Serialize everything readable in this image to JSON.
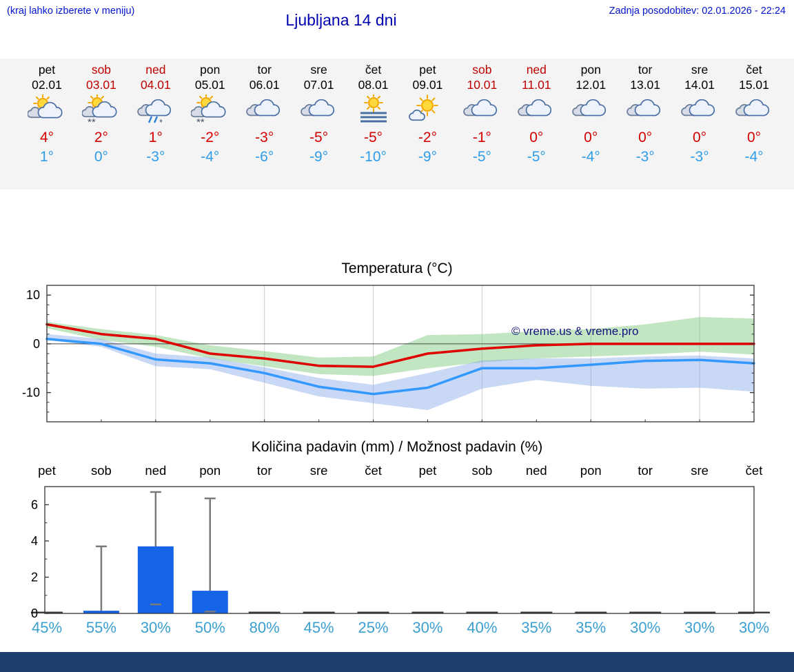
{
  "header": {
    "hint": "(kraj lahko izberete v meniju)",
    "title": "Ljubljana 14 dni",
    "last_update": "Zadnja posodobitev: 02.01.2026 - 22:24"
  },
  "forecast": {
    "days": [
      {
        "name": "pet",
        "date": "02.01",
        "weekend": false,
        "icon": "partly-sunny",
        "high": "4°",
        "low": "1°"
      },
      {
        "name": "sob",
        "date": "03.01",
        "weekend": true,
        "icon": "snow-sun",
        "high": "2°",
        "low": "0°"
      },
      {
        "name": "ned",
        "date": "04.01",
        "weekend": true,
        "icon": "sleet",
        "high": "1°",
        "low": "-3°"
      },
      {
        "name": "pon",
        "date": "05.01",
        "weekend": false,
        "icon": "snow-sun",
        "high": "-2°",
        "low": "-4°"
      },
      {
        "name": "tor",
        "date": "06.01",
        "weekend": false,
        "icon": "cloudy",
        "high": "-3°",
        "low": "-6°"
      },
      {
        "name": "sre",
        "date": "07.01",
        "weekend": false,
        "icon": "cloudy",
        "high": "-5°",
        "low": "-9°"
      },
      {
        "name": "čet",
        "date": "08.01",
        "weekend": false,
        "icon": "fog-sun",
        "high": "-5°",
        "low": "-10°"
      },
      {
        "name": "pet",
        "date": "09.01",
        "weekend": false,
        "icon": "sunny",
        "high": "-2°",
        "low": "-9°"
      },
      {
        "name": "sob",
        "date": "10.01",
        "weekend": true,
        "icon": "cloudy",
        "high": "-1°",
        "low": "-5°"
      },
      {
        "name": "ned",
        "date": "11.01",
        "weekend": true,
        "icon": "cloudy",
        "high": "0°",
        "low": "-5°"
      },
      {
        "name": "pon",
        "date": "12.01",
        "weekend": false,
        "icon": "cloudy",
        "high": "0°",
        "low": "-4°"
      },
      {
        "name": "tor",
        "date": "13.01",
        "weekend": false,
        "icon": "cloudy",
        "high": "0°",
        "low": "-3°"
      },
      {
        "name": "sre",
        "date": "14.01",
        "weekend": false,
        "icon": "cloudy",
        "high": "0°",
        "low": "-3°"
      },
      {
        "name": "čet",
        "date": "15.01",
        "weekend": false,
        "icon": "cloudy",
        "high": "0°",
        "low": "-4°"
      }
    ]
  },
  "chart_data": [
    {
      "type": "line",
      "title": "Temperatura (°C)",
      "x_days": [
        "pet",
        "sob",
        "ned",
        "pon",
        "tor",
        "sre",
        "čet",
        "pet",
        "sob",
        "ned",
        "pon",
        "tor",
        "sre",
        "čet"
      ],
      "ylim": [
        -16,
        12
      ],
      "yticks": [
        10,
        0,
        -10
      ],
      "grid": "vertical-every-2-days",
      "legend": "none",
      "watermark": "© vreme.us & vreme.pro",
      "series": [
        {
          "name": "max-temp",
          "color": "#df0000",
          "values": [
            4,
            2,
            1,
            -2,
            -3,
            -4.5,
            -4.7,
            -2,
            -1,
            -0.3,
            0,
            0,
            0,
            0
          ]
        },
        {
          "name": "min-temp",
          "color": "#3399ff",
          "values": [
            1,
            0,
            -3.2,
            -4,
            -6,
            -8.8,
            -10.3,
            -9,
            -5,
            -5,
            -4.3,
            -3.5,
            -3.3,
            -4
          ]
        }
      ],
      "bands": [
        {
          "name": "max-range",
          "color": "#77c877",
          "hi": [
            4.5,
            3,
            1.8,
            -0.3,
            -1.5,
            -2.8,
            -2.6,
            1.8,
            2,
            2.6,
            3,
            4,
            5.5,
            5.2
          ],
          "lo": [
            3.2,
            0.8,
            -0.6,
            -3,
            -4.6,
            -6.2,
            -6.6,
            -5,
            -3.8,
            -3,
            -2.6,
            -2.2,
            -1.6,
            -2.2
          ]
        },
        {
          "name": "min-range",
          "color": "#88a8e8",
          "hi": [
            2,
            1,
            -2,
            -2.8,
            -4.8,
            -7,
            -8.4,
            -6,
            -3.4,
            -3,
            -3,
            -2.6,
            -2.4,
            -3
          ],
          "lo": [
            0.8,
            -0.6,
            -4.6,
            -5.2,
            -8,
            -10.8,
            -12.2,
            -13.6,
            -9.2,
            -7.4,
            -8.6,
            -9.2,
            -9,
            -9.8
          ]
        }
      ]
    },
    {
      "type": "bar",
      "title": "Količina padavin (mm) / Možnost padavin (%)",
      "categories": [
        "pet",
        "sob",
        "ned",
        "pon",
        "tor",
        "sre",
        "čet",
        "pet",
        "sob",
        "ned",
        "pon",
        "tor",
        "sre",
        "čet"
      ],
      "values": [
        0,
        0.15,
        3.7,
        1.25,
        0,
        0,
        0,
        0,
        0,
        0,
        0,
        0,
        0,
        0
      ],
      "whisker_low": [
        null,
        0,
        0.5,
        0.1,
        null,
        null,
        null,
        null,
        null,
        null,
        null,
        null,
        null,
        null
      ],
      "whisker_high": [
        null,
        3.7,
        6.7,
        6.35,
        null,
        null,
        null,
        null,
        null,
        null,
        null,
        null,
        null,
        null
      ],
      "probabilities": [
        "45%",
        "55%",
        "30%",
        "50%",
        "80%",
        "45%",
        "25%",
        "30%",
        "40%",
        "35%",
        "35%",
        "30%",
        "30%",
        "30%"
      ],
      "ylim": [
        0,
        7
      ],
      "yticks": [
        0,
        2,
        4,
        6
      ],
      "bar_color": "#1563e6"
    }
  ],
  "colors": {
    "accent_blue_text": "#0013cc",
    "title_blue": "#0000b0",
    "weekend_red": "#c00000",
    "high_temp_red": "#d40000",
    "low_temp_blue": "#2e9ce8",
    "probability_blue": "#3b9fd0",
    "strip_background": "#f4f4f4",
    "bottom_bar_navy": "#1c3e6e"
  }
}
